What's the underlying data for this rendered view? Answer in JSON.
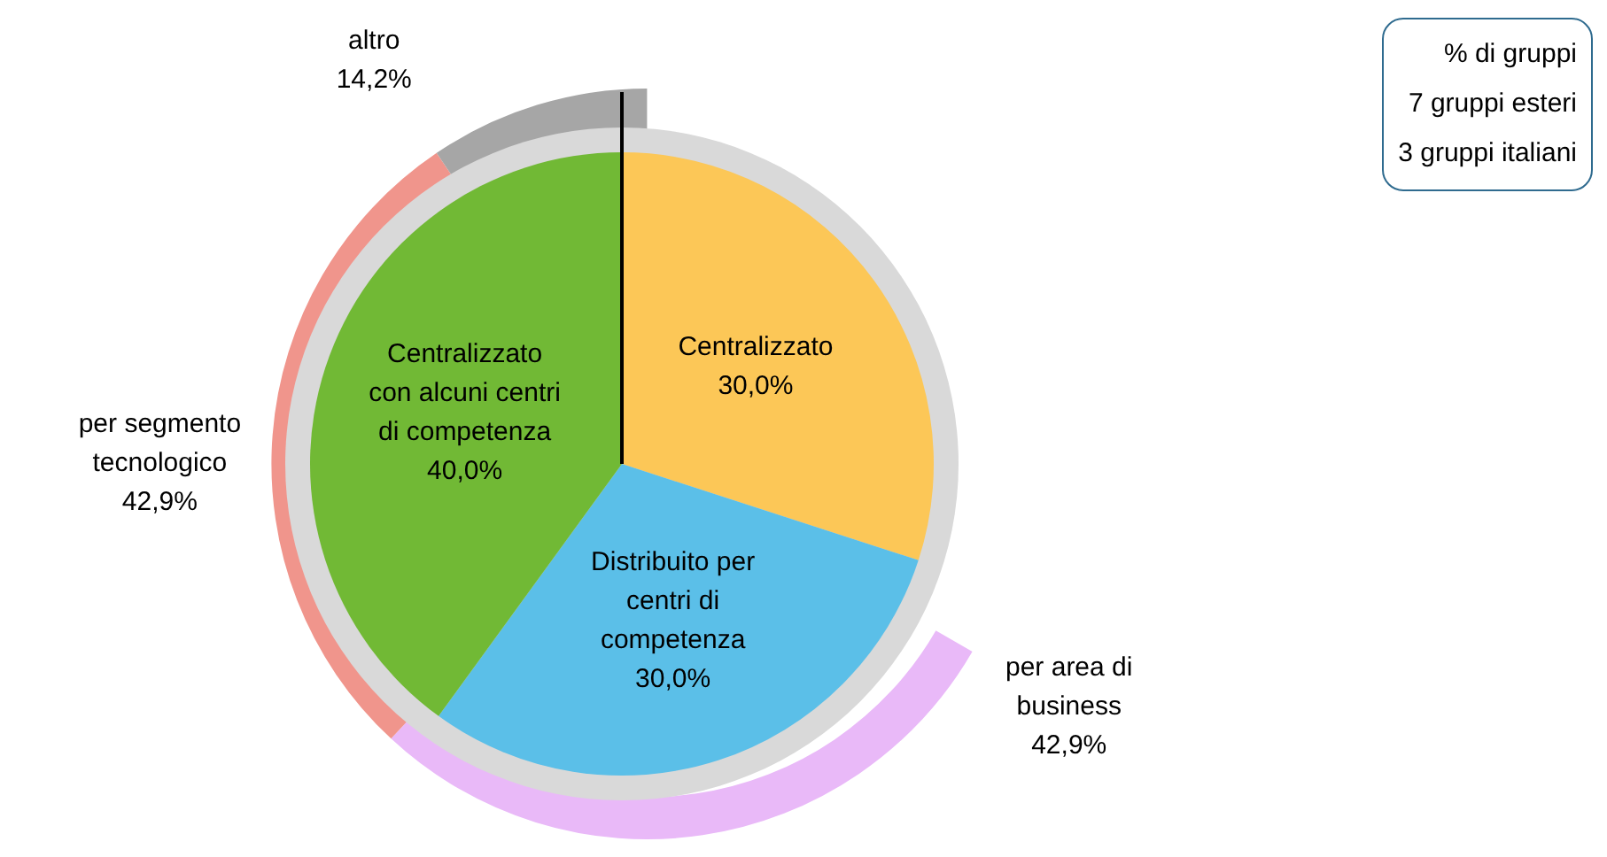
{
  "chart_data": [
    {
      "type": "pie",
      "categories": [
        "Centralizzato",
        "Distribuito per centri di competenza",
        "Centralizzato con alcuni centri di competenza"
      ],
      "values": [
        30,
        30,
        40
      ],
      "colors": [
        "#fcc757",
        "#5bbfe8",
        "#71b935"
      ],
      "value_labels": [
        "30,0%",
        "30,0%",
        "40,0%"
      ],
      "annotations": [
        "% di gruppi",
        "7 gruppi esteri",
        "3 gruppi italiani"
      ]
    },
    {
      "type": "donut",
      "categories": [
        "per area di business",
        "per segmento tecnologico",
        "altro"
      ],
      "values": [
        42.9,
        42.9,
        14.2
      ],
      "colors": [
        "#e9b9f8",
        "#f0958c",
        "#a6a6a6"
      ],
      "value_labels": [
        "42,9%",
        "42,9%",
        "14,2%"
      ]
    }
  ]
}
